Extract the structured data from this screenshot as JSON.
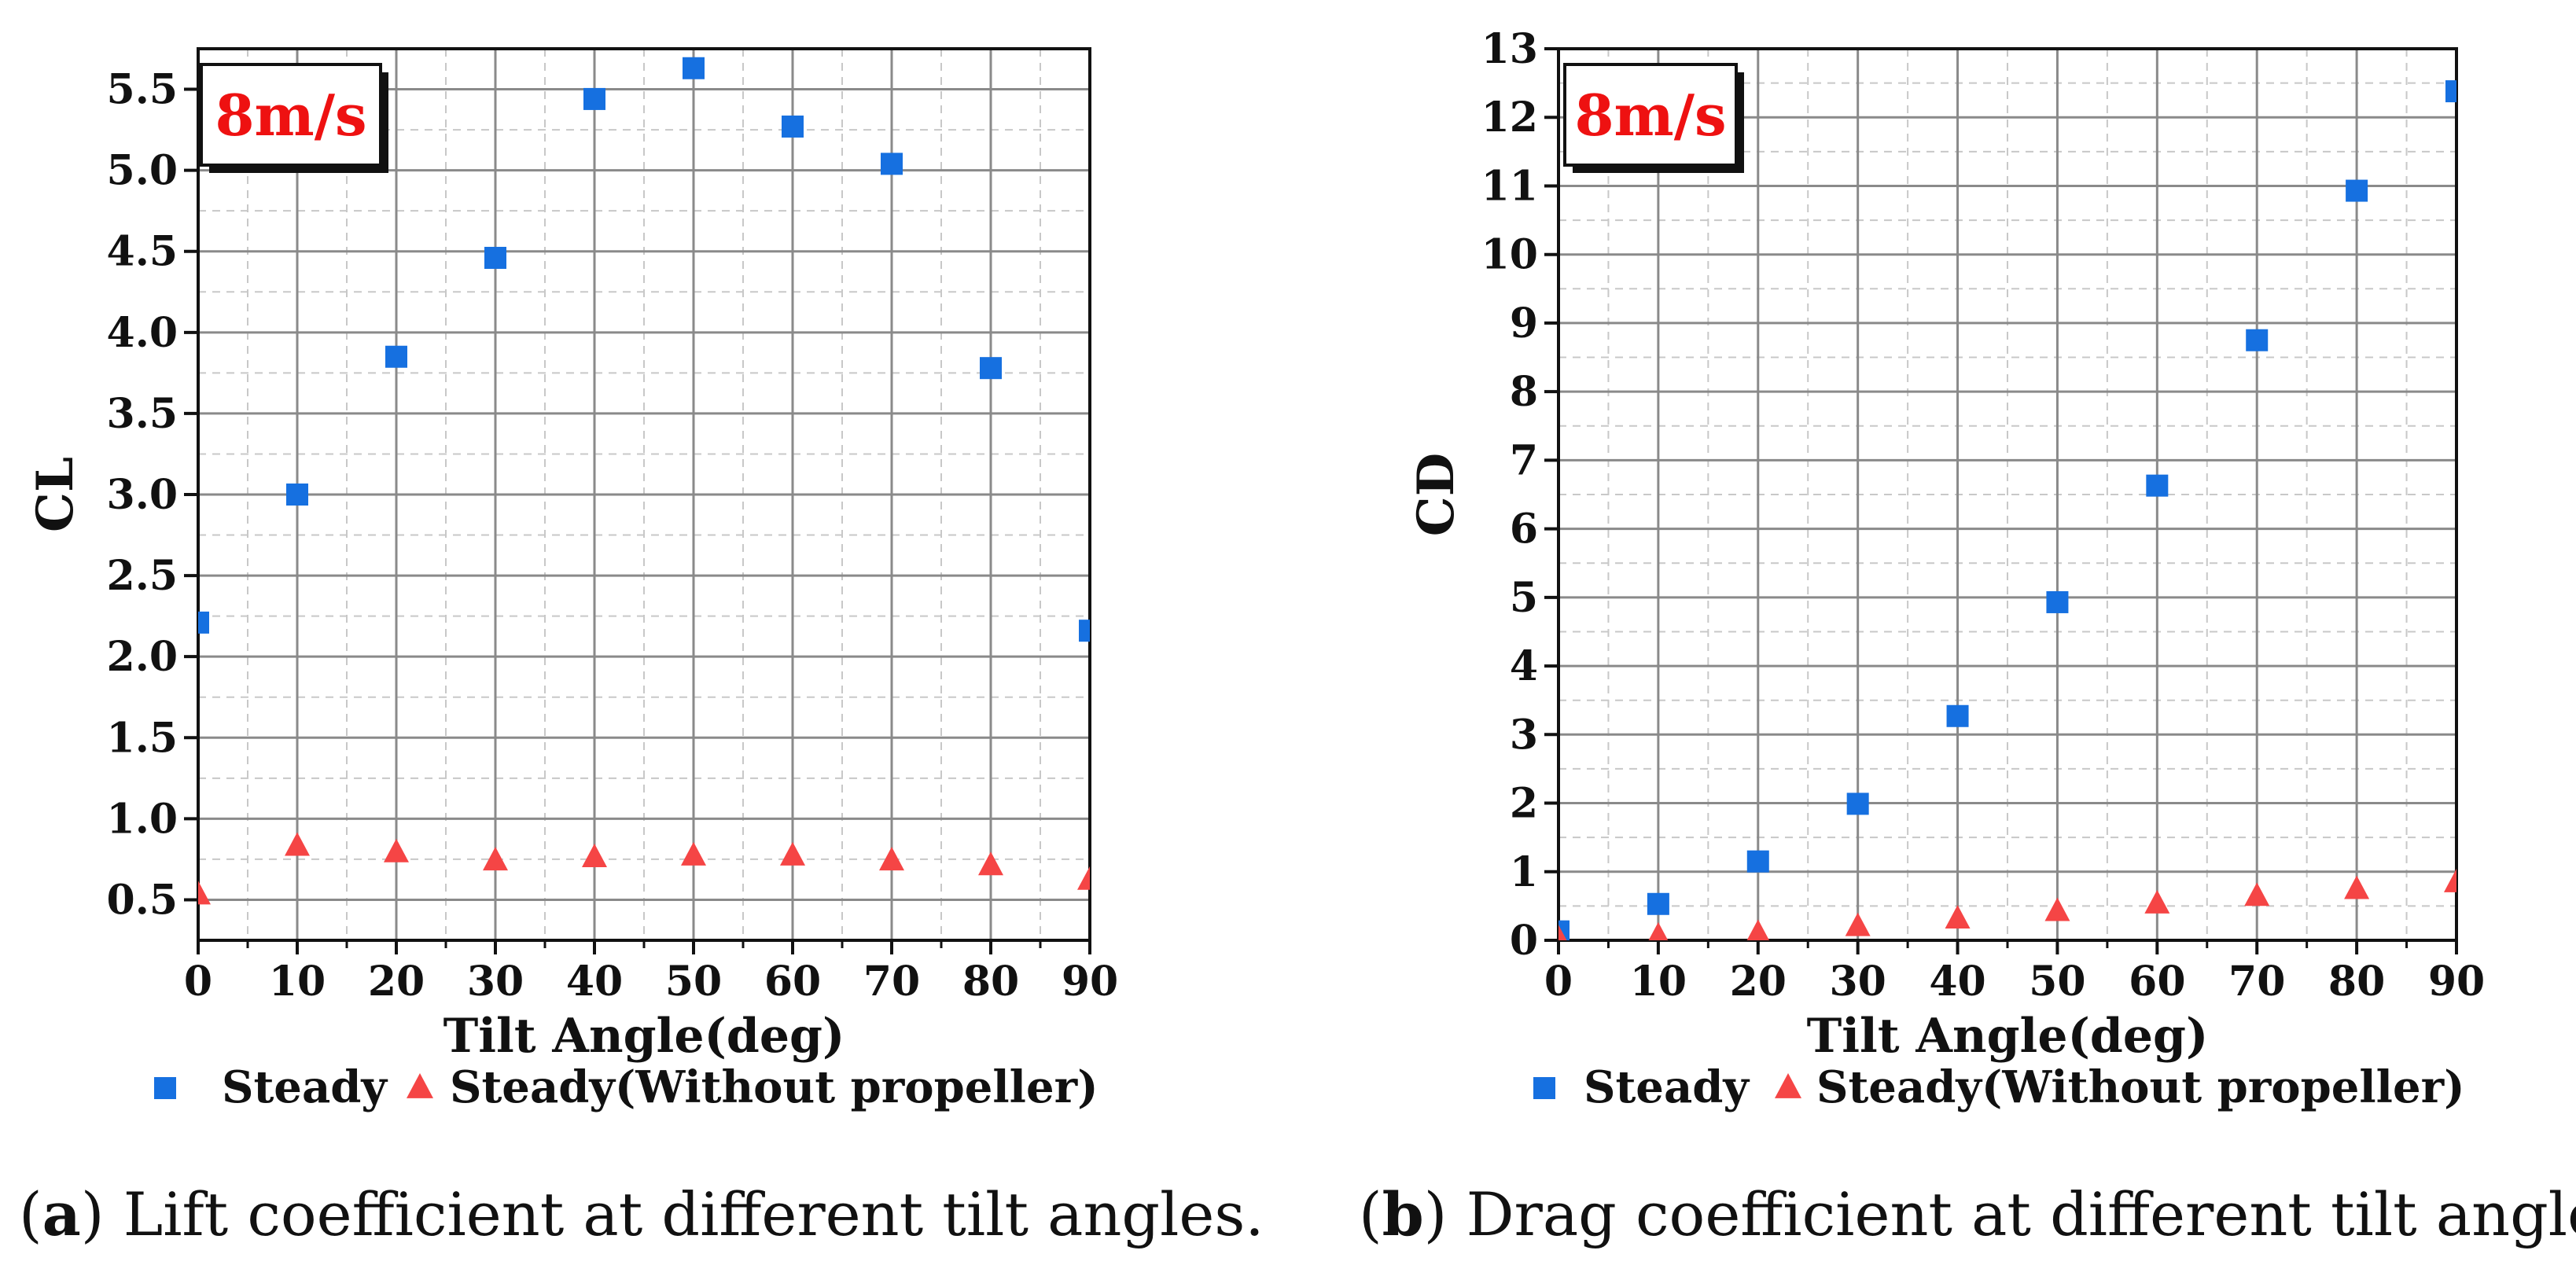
{
  "figure": {
    "captions": [
      {
        "letter": "a",
        "text": " Lift coefficient at different tilt angles."
      },
      {
        "letter": "b",
        "text": " Drag coefficient at different tilt angles."
      }
    ]
  },
  "chart_data": [
    {
      "type": "scatter",
      "title": "",
      "annotation": "8m/s",
      "xlabel": "Tilt Angle(deg)",
      "ylabel": "CL",
      "xlim": [
        0,
        90
      ],
      "ylim": [
        0.25,
        5.75
      ],
      "xticks": [
        0,
        10,
        20,
        30,
        40,
        50,
        60,
        70,
        80,
        90
      ],
      "xtick_labels": [
        "0",
        "10",
        "20",
        "30",
        "40",
        "50",
        "60",
        "70",
        "80",
        "90"
      ],
      "yticks": [
        0.5,
        1.0,
        1.5,
        2.0,
        2.5,
        3.0,
        3.5,
        4.0,
        4.5,
        5.0,
        5.5
      ],
      "ytick_labels": [
        "0.5",
        "1.0",
        "1.5",
        "2.0",
        "2.5",
        "3.0",
        "3.5",
        "4.0",
        "4.5",
        "5.0",
        "5.5"
      ],
      "grid": true,
      "legend_position": "bottom",
      "series": [
        {
          "name": "Steady",
          "marker": "square",
          "color": "#1670E0",
          "x": [
            0,
            10,
            20,
            30,
            40,
            50,
            60,
            70,
            80,
            90
          ],
          "y": [
            2.21,
            3.0,
            3.85,
            4.46,
            5.44,
            5.63,
            5.27,
            5.04,
            3.78,
            2.16
          ]
        },
        {
          "name": "Steady(Without propeller)",
          "marker": "triangle",
          "color": "#F54545",
          "x": [
            0,
            10,
            20,
            30,
            40,
            50,
            60,
            70,
            80,
            90
          ],
          "y": [
            0.53,
            0.83,
            0.79,
            0.74,
            0.76,
            0.77,
            0.77,
            0.74,
            0.71,
            0.62
          ]
        }
      ]
    },
    {
      "type": "scatter",
      "title": "",
      "annotation": "8m/s",
      "xlabel": "Tilt Angle(deg)",
      "ylabel": "CD",
      "xlim": [
        0,
        90
      ],
      "ylim": [
        0,
        13
      ],
      "xticks": [
        0,
        10,
        20,
        30,
        40,
        50,
        60,
        70,
        80,
        90
      ],
      "xtick_labels": [
        "0",
        "10",
        "20",
        "30",
        "40",
        "50",
        "60",
        "70",
        "80",
        "90"
      ],
      "yticks": [
        0,
        1,
        2,
        3,
        4,
        5,
        6,
        7,
        8,
        9,
        10,
        11,
        12,
        13
      ],
      "ytick_labels": [
        "0",
        "1",
        "2",
        "3",
        "4",
        "5",
        "6",
        "7",
        "8",
        "9",
        "10",
        "11",
        "12",
        "13"
      ],
      "grid": true,
      "legend_position": "bottom",
      "series": [
        {
          "name": "Steady",
          "marker": "square",
          "color": "#1670E0",
          "x": [
            0,
            10,
            20,
            30,
            40,
            50,
            60,
            70,
            80,
            90
          ],
          "y": [
            0.13,
            0.53,
            1.15,
            1.99,
            3.27,
            4.93,
            6.63,
            8.75,
            10.93,
            12.38
          ]
        },
        {
          "name": "Steady(Without propeller)",
          "marker": "triangle",
          "color": "#F54545",
          "x": [
            0,
            10,
            20,
            30,
            40,
            50,
            60,
            70,
            80,
            90
          ],
          "y": [
            0.02,
            0.06,
            0.1,
            0.2,
            0.31,
            0.42,
            0.53,
            0.64,
            0.74,
            0.84
          ]
        }
      ]
    }
  ]
}
